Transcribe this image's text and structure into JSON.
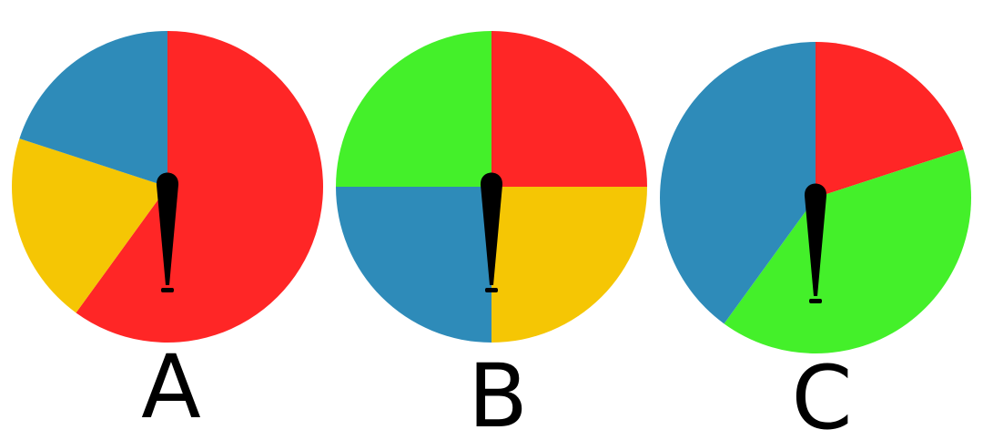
{
  "colors": {
    "red": "#ff2626",
    "blue": "#2e8bb9",
    "yellow": "#f5c604",
    "green": "#44f02a",
    "pointer": "#000000"
  },
  "spinners": [
    {
      "label": "A",
      "sectors": [
        {
          "color": "red",
          "fraction": 0.6
        },
        {
          "color": "yellow",
          "fraction": 0.2
        },
        {
          "color": "blue",
          "fraction": 0.2
        }
      ]
    },
    {
      "label": "B",
      "sectors": [
        {
          "color": "red",
          "fraction": 0.25
        },
        {
          "color": "yellow",
          "fraction": 0.25
        },
        {
          "color": "blue",
          "fraction": 0.25
        },
        {
          "color": "green",
          "fraction": 0.25
        }
      ]
    },
    {
      "label": "C",
      "sectors": [
        {
          "color": "red",
          "fraction": 0.2
        },
        {
          "color": "green",
          "fraction": 0.4
        },
        {
          "color": "blue",
          "fraction": 0.4
        }
      ]
    }
  ]
}
